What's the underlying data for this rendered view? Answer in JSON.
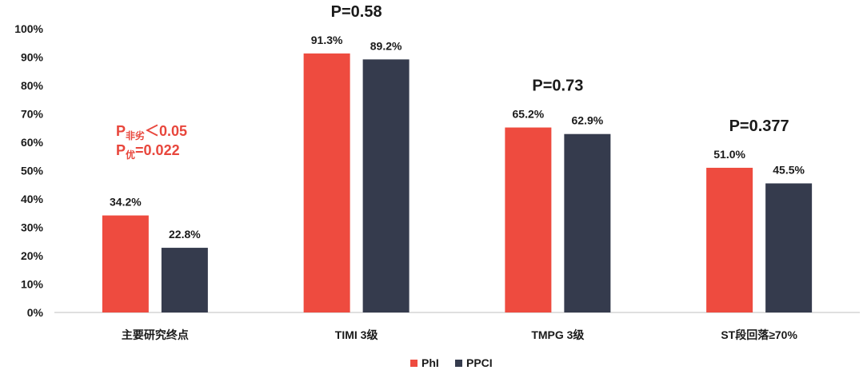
{
  "chart_data": {
    "type": "bar",
    "categories": [
      "主要研究终点",
      "TIMI 3级",
      "TMPG 3级",
      "ST段回落≥70%"
    ],
    "series": [
      {
        "name": "PhI",
        "values": [
          34.2,
          91.3,
          65.2,
          51.0
        ],
        "color": "#EE4B3F"
      },
      {
        "name": "PPCI",
        "values": [
          22.8,
          89.2,
          62.9,
          45.5
        ],
        "color": "#353B4D"
      }
    ],
    "data_labels": [
      [
        "34.2%",
        "91.3%",
        "65.2%",
        "51.0%"
      ],
      [
        "22.8%",
        "89.2%",
        "62.9%",
        "45.5%"
      ]
    ],
    "ylim": [
      0,
      100
    ],
    "yticks": [
      0,
      10,
      20,
      30,
      40,
      50,
      60,
      70,
      80,
      90,
      100
    ],
    "ytick_labels": [
      "0%",
      "10%",
      "20%",
      "30%",
      "40%",
      "50%",
      "60%",
      "70%",
      "80%",
      "90%",
      "100%"
    ],
    "title": "",
    "xlabel": "",
    "ylabel": "",
    "grid": false,
    "legend_position": "bottom-center",
    "annotations": {
      "p_values": [
        null,
        "P=0.58",
        "P=0.73",
        "P=0.377"
      ],
      "first_group": {
        "line1_main": "P",
        "line1_sub": "非劣",
        "line1_rest": "＜0.05",
        "line2_main": "P",
        "line2_sub": "优",
        "line2_rest": "=0.022",
        "color": "#E8463C"
      }
    }
  }
}
